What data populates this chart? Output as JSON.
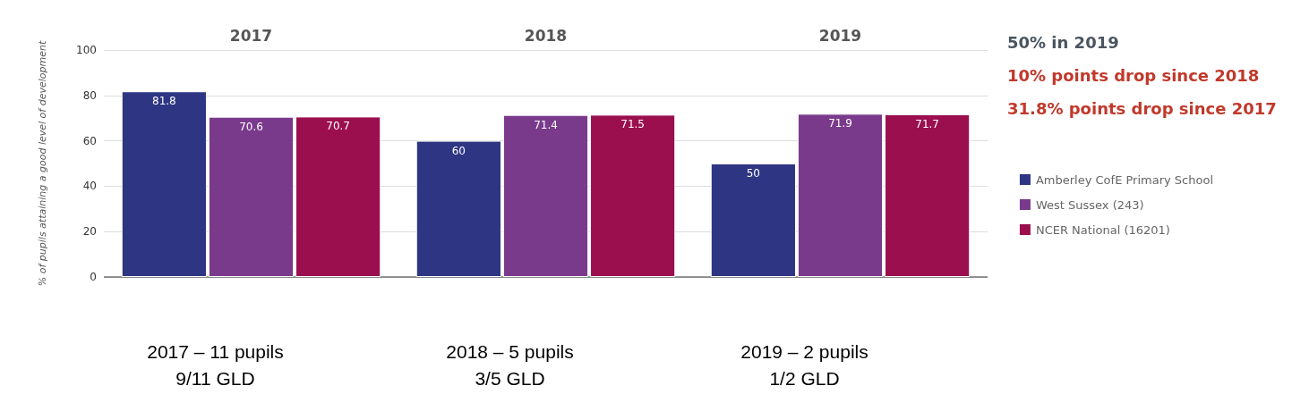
{
  "chart_data": {
    "type": "bar",
    "categories": [
      "2017",
      "2018",
      "2019"
    ],
    "ylabel": "% of pupils attaining a good level of development",
    "series": [
      {
        "name": "Amberley CofE Primary School",
        "color": "#2e3583",
        "values": [
          81.8,
          60,
          50
        ]
      },
      {
        "name": "West Sussex (243)",
        "color": "#7a3a8c",
        "values": [
          70.6,
          71.4,
          71.9
        ]
      },
      {
        "name": "NCER National (16201)",
        "color": "#9b0f4f",
        "values": [
          70.7,
          71.5,
          71.7
        ]
      }
    ],
    "ylim": [
      0,
      100
    ],
    "yticks": [
      0,
      20,
      40,
      60,
      80,
      100
    ],
    "grid": "y",
    "legend": "right",
    "data_labels": true,
    "annotations": [
      "50% in 2019",
      "10% points drop since 2018",
      "31.8% points drop since 2017",
      "2017 – 11 pupils\n9/11 GLD",
      "2018 – 5 pupils\n3/5 GLD",
      "2019 – 2 pupils\n1/2 GLD"
    ]
  }
}
